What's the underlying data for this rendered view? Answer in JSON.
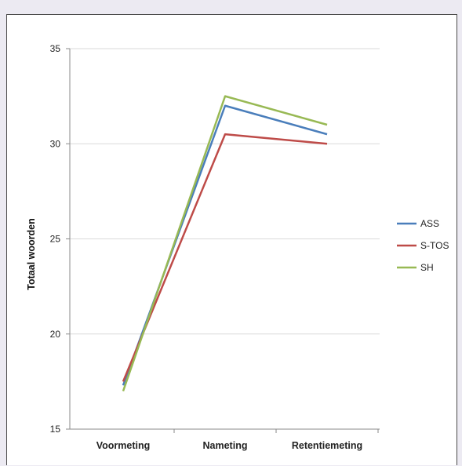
{
  "chart_data": {
    "type": "line",
    "title": "",
    "xlabel": "",
    "ylabel": "Totaal woorden",
    "categories": [
      "Voormeting",
      "Nameting",
      "Retentiemeting"
    ],
    "ylim": [
      15,
      35
    ],
    "yticks": [
      "15",
      "20",
      "25",
      "30",
      "35"
    ],
    "grid": true,
    "legend_position": "right",
    "series": [
      {
        "name": "ASS",
        "values": [
          17.3,
          32.0,
          30.5
        ],
        "color": "#4a7ebb"
      },
      {
        "name": "S-TOS",
        "values": [
          17.5,
          30.5,
          30.0
        ],
        "color": "#be4b48"
      },
      {
        "name": "SH",
        "values": [
          17.0,
          32.5,
          31.0
        ],
        "color": "#98b954"
      }
    ]
  }
}
